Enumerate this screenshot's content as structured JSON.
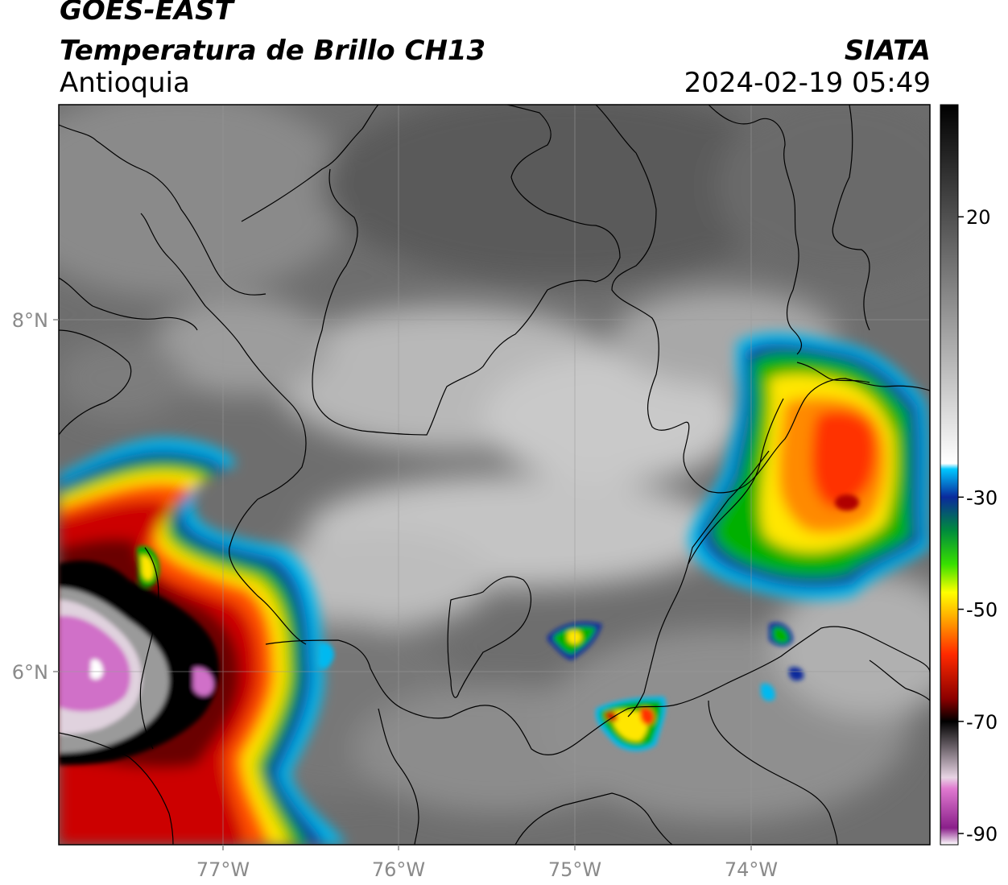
{
  "header": {
    "satellite": "GOES-EAST",
    "product": "Temperatura de Brillo CH13",
    "region": "Antioquia",
    "source": "SIATA",
    "timestamp": "2024-02-19 05:49"
  },
  "axes": {
    "lat_ticks": [
      "8°N",
      "6°N"
    ],
    "lon_ticks": [
      "77°W",
      "76°W",
      "75°W",
      "74°W"
    ],
    "lat_range": [
      5.0,
      9.2
    ],
    "lon_range": [
      -77.95,
      -72.95
    ]
  },
  "colorbar": {
    "ticks": [
      "20",
      "-30",
      "-50",
      "-70",
      "-90"
    ],
    "tick_values": [
      20,
      -30,
      -50,
      -70,
      -90
    ],
    "range": [
      -92,
      40
    ],
    "stops": [
      {
        "value": -92,
        "color": "#ffffff"
      },
      {
        "value": -89,
        "color": "#8a1f8a"
      },
      {
        "value": -82,
        "color": "#e07ad0"
      },
      {
        "value": -80,
        "color": "#e8d4e4"
      },
      {
        "value": -70,
        "color": "#000000"
      },
      {
        "value": -66,
        "color": "#8b0000"
      },
      {
        "value": -58,
        "color": "#ff2a00"
      },
      {
        "value": -51,
        "color": "#ffb400"
      },
      {
        "value": -47,
        "color": "#ffff00"
      },
      {
        "value": -42,
        "color": "#38e000"
      },
      {
        "value": -36,
        "color": "#008c3c"
      },
      {
        "value": -30,
        "color": "#0a2a9c"
      },
      {
        "value": -25,
        "color": "#00c8ff"
      },
      {
        "value": -24,
        "color": "#ffffff"
      },
      {
        "value": 40,
        "color": "#000000"
      }
    ]
  },
  "legend_labels": {
    "colorbar_icon": "colorbar-icon",
    "map_icon": "satellite-map-icon"
  }
}
